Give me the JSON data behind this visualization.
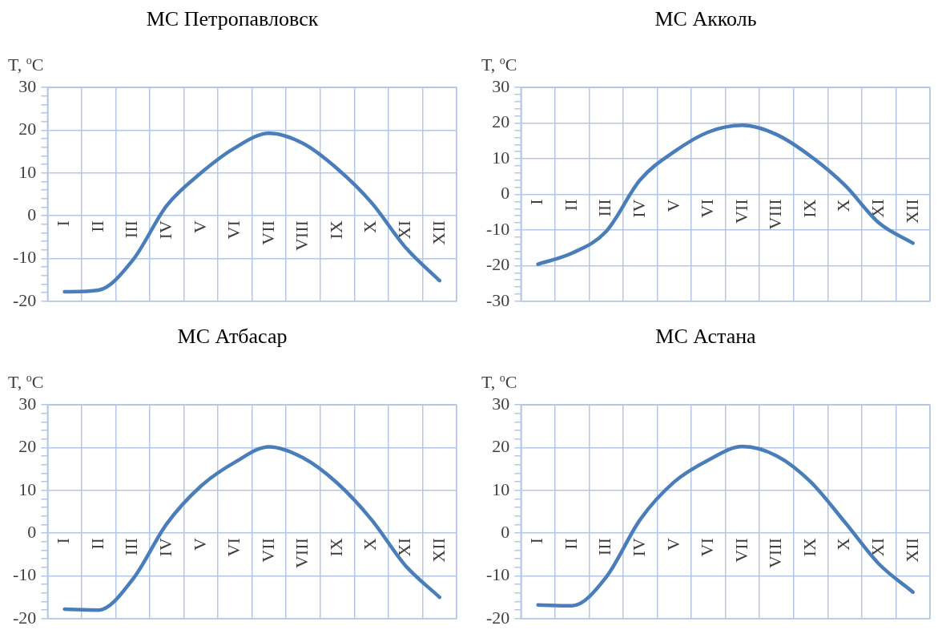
{
  "chart_data": [
    {
      "type": "line",
      "title": "МС Петропавловск",
      "ylabel": "T, $^{o}$C",
      "categories": [
        "I",
        "II",
        "III",
        "IV",
        "V",
        "VI",
        "VII",
        "VIII",
        "IX",
        "X",
        "XI",
        "XII"
      ],
      "series": [
        {
          "color": "#4a7ebb",
          "values": [
            -17.8,
            -17.4,
            -10.4,
            2.4,
            10.0,
            15.9,
            19.3,
            16.9,
            11.0,
            3.1,
            -7.4,
            -15.2
          ]
        }
      ],
      "ylim": [
        -20,
        30
      ],
      "yticks": [
        -20,
        {
          "value": -18,
          "label": null
        },
        {
          "value": -16,
          "label": null
        },
        {
          "value": -14,
          "label": null
        },
        {
          "value": -12,
          "label": null
        },
        -10,
        {
          "value": -8,
          "label": null
        },
        {
          "value": -6,
          "label": null
        },
        {
          "value": -4,
          "label": null
        },
        {
          "value": -2,
          "label": null
        },
        0,
        {
          "value": 2,
          "label": null
        },
        {
          "value": 4,
          "label": null
        },
        {
          "value": 6,
          "label": null
        },
        {
          "value": 8,
          "label": null
        },
        10,
        {
          "value": 12,
          "label": null
        },
        {
          "value": 14,
          "label": null
        },
        {
          "value": 16,
          "label": null
        },
        {
          "value": 18,
          "label": null
        },
        20,
        {
          "value": 22,
          "label": null
        },
        {
          "value": 24,
          "label": null
        },
        {
          "value": 26,
          "label": null
        },
        {
          "value": 28,
          "label": null
        },
        30
      ],
      "grid": true,
      "legend": false,
      "marker": "none",
      "line_style": "solid"
    },
    {
      "type": "line",
      "title": "МС Акколь",
      "ylabel": "T, $^{o}$C",
      "categories": [
        "I",
        "II",
        "III",
        "IV",
        "V",
        "VI",
        "VII",
        "VIII",
        "IX",
        "X",
        "XI",
        "XII"
      ],
      "series": [
        {
          "color": "#4a7ebb",
          "values": [
            -19.6,
            -16.5,
            -10.4,
            4.1,
            12.0,
            17.5,
            19.4,
            16.8,
            10.7,
            2.6,
            -8.0,
            -13.7
          ]
        }
      ],
      "ylim": [
        -30,
        30
      ],
      "yticks": [
        -30,
        {
          "value": -28,
          "label": null
        },
        {
          "value": -26,
          "label": null
        },
        {
          "value": -24,
          "label": null
        },
        {
          "value": -22,
          "label": null
        },
        -20,
        {
          "value": -18,
          "label": null
        },
        {
          "value": -16,
          "label": null
        },
        {
          "value": -14,
          "label": null
        },
        {
          "value": -12,
          "label": null
        },
        -10,
        {
          "value": -8,
          "label": null
        },
        {
          "value": -6,
          "label": null
        },
        {
          "value": -4,
          "label": null
        },
        {
          "value": -2,
          "label": null
        },
        0,
        {
          "value": 2,
          "label": null
        },
        {
          "value": 4,
          "label": null
        },
        {
          "value": 6,
          "label": null
        },
        {
          "value": 8,
          "label": null
        },
        10,
        {
          "value": 12,
          "label": null
        },
        {
          "value": 14,
          "label": null
        },
        {
          "value": 16,
          "label": null
        },
        {
          "value": 18,
          "label": null
        },
        20,
        {
          "value": 22,
          "label": null
        },
        {
          "value": 24,
          "label": null
        },
        {
          "value": 26,
          "label": null
        },
        {
          "value": 28,
          "label": null
        },
        30
      ],
      "grid": true,
      "legend": false,
      "marker": "none",
      "line_style": "solid"
    },
    {
      "type": "line",
      "title": "МС Атбасар",
      "ylabel": "T, $^{o}$C",
      "categories": [
        "I",
        "II",
        "III",
        "IV",
        "V",
        "VI",
        "VII",
        "VIII",
        "IX",
        "X",
        "XI",
        "XII"
      ],
      "series": [
        {
          "color": "#4a7ebb",
          "values": [
            -17.8,
            -18.0,
            -10.8,
            2.2,
            11.0,
            16.6,
            20.2,
            17.6,
            11.7,
            3.2,
            -7.6,
            -15.0
          ]
        }
      ],
      "ylim": [
        -20,
        30
      ],
      "yticks": [
        -20,
        {
          "value": -18,
          "label": null
        },
        {
          "value": -16,
          "label": null
        },
        {
          "value": -14,
          "label": null
        },
        {
          "value": -12,
          "label": null
        },
        -10,
        {
          "value": -8,
          "label": null
        },
        {
          "value": -6,
          "label": null
        },
        {
          "value": -4,
          "label": null
        },
        {
          "value": -2,
          "label": null
        },
        0,
        {
          "value": 2,
          "label": null
        },
        {
          "value": 4,
          "label": null
        },
        {
          "value": 6,
          "label": null
        },
        {
          "value": 8,
          "label": null
        },
        10,
        {
          "value": 12,
          "label": null
        },
        {
          "value": 14,
          "label": null
        },
        {
          "value": 16,
          "label": null
        },
        {
          "value": 18,
          "label": null
        },
        20,
        {
          "value": 22,
          "label": null
        },
        {
          "value": 24,
          "label": null
        },
        {
          "value": 26,
          "label": null
        },
        {
          "value": 28,
          "label": null
        },
        30
      ],
      "grid": true,
      "legend": false,
      "marker": "none",
      "line_style": "solid"
    },
    {
      "type": "line",
      "title": "МС Астана",
      "ylabel": "T, $^{o}$C",
      "categories": [
        "I",
        "II",
        "III",
        "IV",
        "V",
        "VI",
        "VII",
        "VIII",
        "IX",
        "X",
        "XI",
        "XII"
      ],
      "series": [
        {
          "color": "#4a7ebb",
          "values": [
            -16.8,
            -17.0,
            -10.3,
            3.2,
            12.0,
            17.1,
            20.3,
            18.1,
            12.0,
            2.6,
            -7.2,
            -13.8
          ]
        }
      ],
      "ylim": [
        -20,
        30
      ],
      "yticks": [
        -20,
        {
          "value": -18,
          "label": null
        },
        {
          "value": -16,
          "label": null
        },
        {
          "value": -14,
          "label": null
        },
        {
          "value": -12,
          "label": null
        },
        -10,
        {
          "value": -8,
          "label": null
        },
        {
          "value": -6,
          "label": null
        },
        {
          "value": -4,
          "label": null
        },
        {
          "value": -2,
          "label": null
        },
        0,
        {
          "value": 2,
          "label": null
        },
        {
          "value": 4,
          "label": null
        },
        {
          "value": 6,
          "label": null
        },
        {
          "value": 8,
          "label": null
        },
        10,
        {
          "value": 12,
          "label": null
        },
        {
          "value": 14,
          "label": null
        },
        {
          "value": 16,
          "label": null
        },
        {
          "value": 18,
          "label": null
        },
        20,
        {
          "value": 22,
          "label": null
        },
        {
          "value": 24,
          "label": null
        },
        {
          "value": 26,
          "label": null
        },
        {
          "value": 28,
          "label": null
        },
        30
      ],
      "grid": true,
      "legend": false,
      "marker": "none",
      "line_style": "solid"
    }
  ]
}
